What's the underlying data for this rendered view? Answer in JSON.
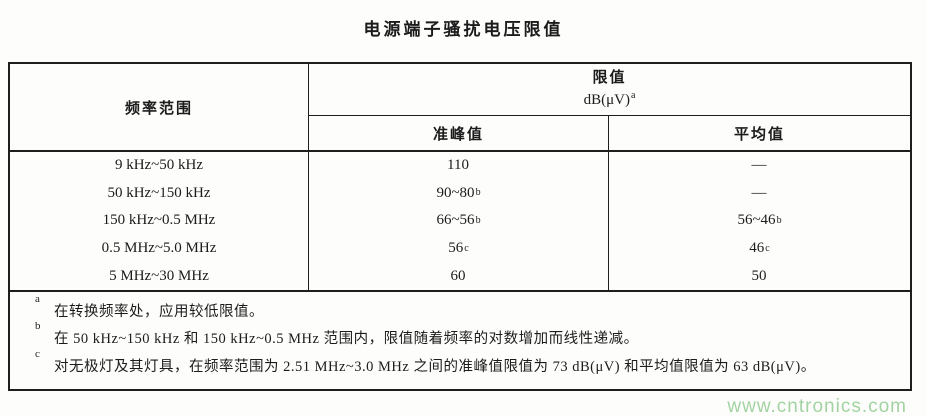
{
  "page": {
    "title": "电源端子骚扰电压限值"
  },
  "table": {
    "header": {
      "frequency_col": "频率范围",
      "limit_group": "限值",
      "limit_unit": "dB(μV)",
      "limit_unit_sup": "a",
      "quasi_peak_col": "准峰值",
      "average_col": "平均值"
    },
    "rows": [
      {
        "freq": "9 kHz~50 kHz",
        "qp": "110",
        "qp_sup": "",
        "avg": "—",
        "avg_sup": ""
      },
      {
        "freq": "50 kHz~150 kHz",
        "qp": "90~80",
        "qp_sup": "b",
        "avg": "—",
        "avg_sup": ""
      },
      {
        "freq": "150 kHz~0.5 MHz",
        "qp": "66~56",
        "qp_sup": "b",
        "avg": "56~46",
        "avg_sup": "b"
      },
      {
        "freq": "0.5 MHz~5.0 MHz",
        "qp": "56",
        "qp_sup": "c",
        "avg": "46",
        "avg_sup": "c"
      },
      {
        "freq": "5 MHz~30 MHz",
        "qp": "60",
        "qp_sup": "",
        "avg": "50",
        "avg_sup": ""
      }
    ],
    "footnotes": [
      {
        "marker": "a",
        "text": "在转换频率处，应用较低限值。"
      },
      {
        "marker": "b",
        "text": "在 50 kHz~150 kHz 和 150 kHz~0.5 MHz 范围内，限值随着频率的对数增加而线性递减。"
      },
      {
        "marker": "c",
        "text": "对无极灯及其灯具，在频率范围为 2.51 MHz~3.0 MHz 之间的准峰值限值为 73 dB(μV) 和平均值限值为 63 dB(μV)。"
      }
    ]
  },
  "watermark": {
    "text": "www.cntronics.com",
    "color": "#a3d3a3"
  }
}
